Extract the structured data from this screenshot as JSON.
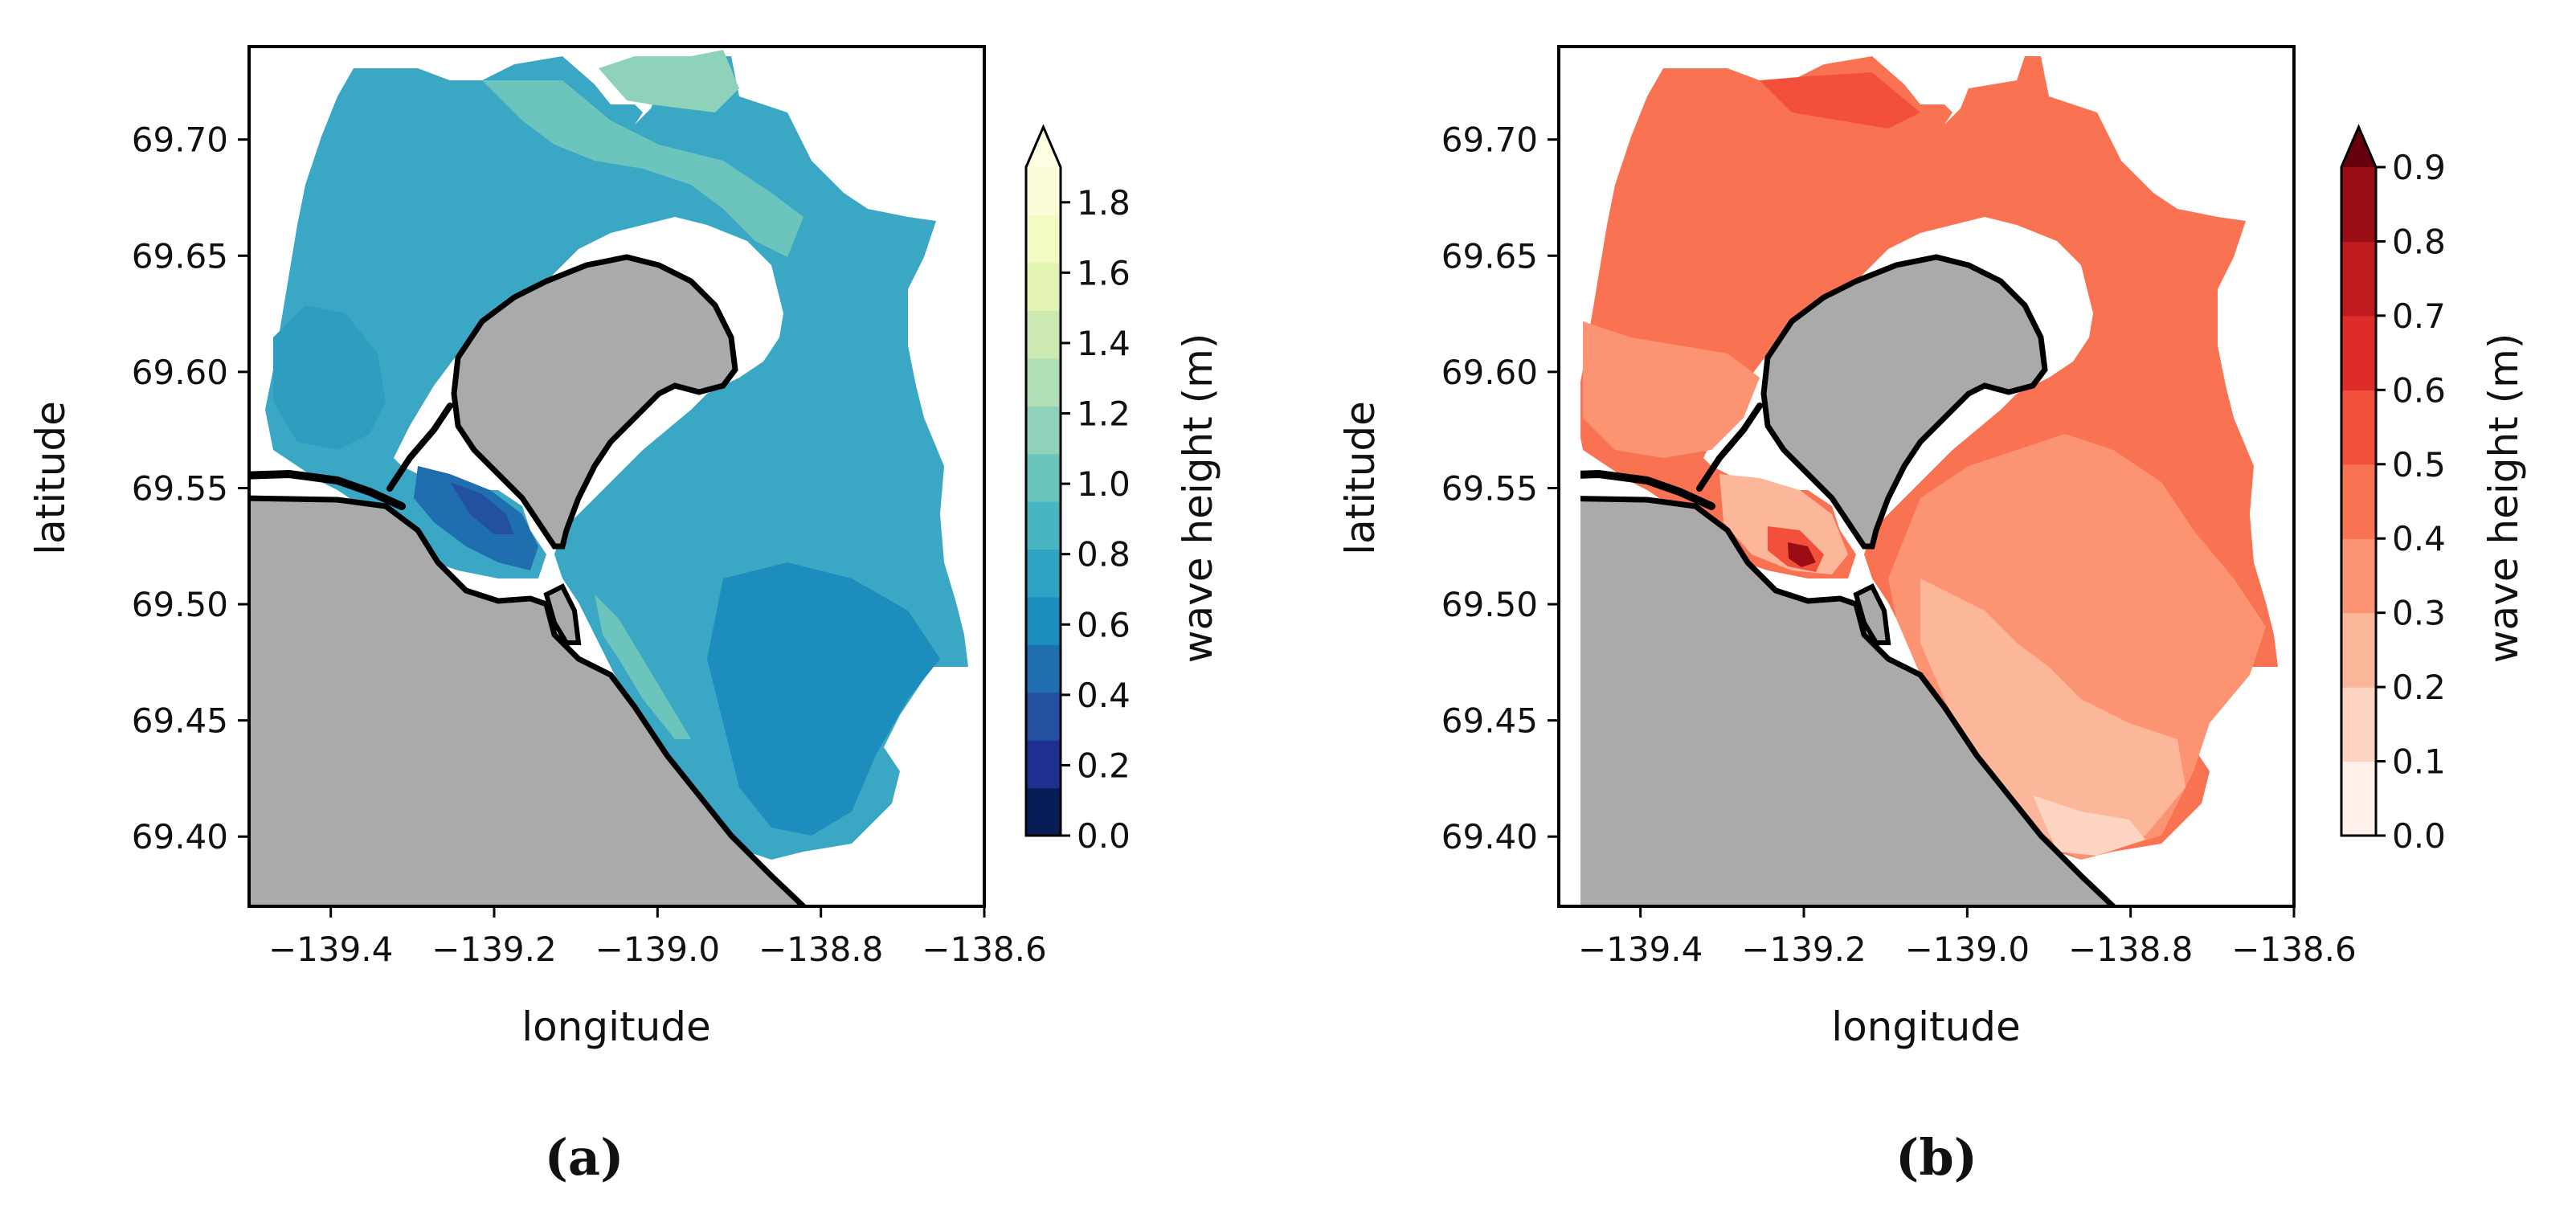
{
  "chart_data": [
    {
      "type": "heatmap",
      "panel_label": "(a)",
      "title": "",
      "xlabel": "longitude",
      "ylabel": "latitude",
      "xlim": [
        -139.5,
        -138.6
      ],
      "ylim": [
        69.37,
        69.74
      ],
      "xticks": [
        -139.4,
        -139.2,
        -139.0,
        -138.8,
        -138.6
      ],
      "xtick_labels": [
        "−139.4",
        "−139.2",
        "−139.0",
        "−138.8",
        "−138.6"
      ],
      "yticks": [
        69.4,
        69.45,
        69.5,
        69.55,
        69.6,
        69.65,
        69.7
      ],
      "ytick_labels": [
        "69.40",
        "69.45",
        "69.50",
        "69.55",
        "69.60",
        "69.65",
        "69.70"
      ],
      "colorbar": {
        "label": "wave height (m)",
        "colormap": "YlGnBu_r",
        "extend": "max",
        "min": 0.0,
        "max": 1.9,
        "ticks": [
          0.0,
          0.2,
          0.4,
          0.6,
          0.8,
          1.0,
          1.2,
          1.4,
          1.6,
          1.8
        ],
        "tick_labels": [
          "0.0",
          "0.2",
          "0.4",
          "0.6",
          "0.8",
          "1.0",
          "1.2",
          "1.4",
          "1.6",
          "1.8"
        ],
        "level_colors": [
          "#081d58",
          "#1f2f8f",
          "#2450a2",
          "#1f6eb0",
          "#1d8dbe",
          "#2ea3c2",
          "#47b6c2",
          "#6cc5bd",
          "#8fd2ba",
          "#b1e0b7",
          "#cdeab3",
          "#e3f4b3",
          "#f3fac2",
          "#fbfdd8"
        ],
        "extend_color": "#ffffe3"
      },
      "field_summary": {
        "typical": 0.9,
        "min_region": 0.5,
        "max_region": 1.4
      },
      "colors": {
        "land": "#aaaaaa",
        "coast": "#000000"
      }
    },
    {
      "type": "heatmap",
      "panel_label": "(b)",
      "title": "",
      "xlabel": "longitude",
      "ylabel": "latitude",
      "xlim": [
        -139.5,
        -138.6
      ],
      "ylim": [
        69.37,
        69.74
      ],
      "xticks": [
        -139.4,
        -139.2,
        -139.0,
        -138.8,
        -138.6
      ],
      "xtick_labels": [
        "−139.4",
        "−139.2",
        "−139.0",
        "−138.8",
        "−138.6"
      ],
      "yticks": [
        69.4,
        69.45,
        69.5,
        69.55,
        69.6,
        69.65,
        69.7
      ],
      "ytick_labels": [
        "69.40",
        "69.45",
        "69.50",
        "69.55",
        "69.60",
        "69.65",
        "69.70"
      ],
      "colorbar": {
        "label": "wave height (m)",
        "colormap": "Reds",
        "extend": "max",
        "min": 0.0,
        "max": 0.9,
        "ticks": [
          0.0,
          0.1,
          0.2,
          0.3,
          0.4,
          0.5,
          0.6,
          0.7,
          0.8,
          0.9
        ],
        "tick_labels": [
          "0.0",
          "0.1",
          "0.2",
          "0.3",
          "0.4",
          "0.5",
          "0.6",
          "0.7",
          "0.8",
          "0.9"
        ],
        "level_colors": [
          "#fff0e9",
          "#fdd4c2",
          "#fcb69a",
          "#fc9373",
          "#f97353",
          "#f2503a",
          "#dd2c2a",
          "#bf1a1e",
          "#9a0d14"
        ],
        "extend_color": "#67000d"
      },
      "field_summary": {
        "typical": 0.35,
        "min_region": 0.15,
        "max_region": 0.9
      },
      "colors": {
        "land": "#aaaaaa",
        "coast": "#000000"
      }
    }
  ]
}
